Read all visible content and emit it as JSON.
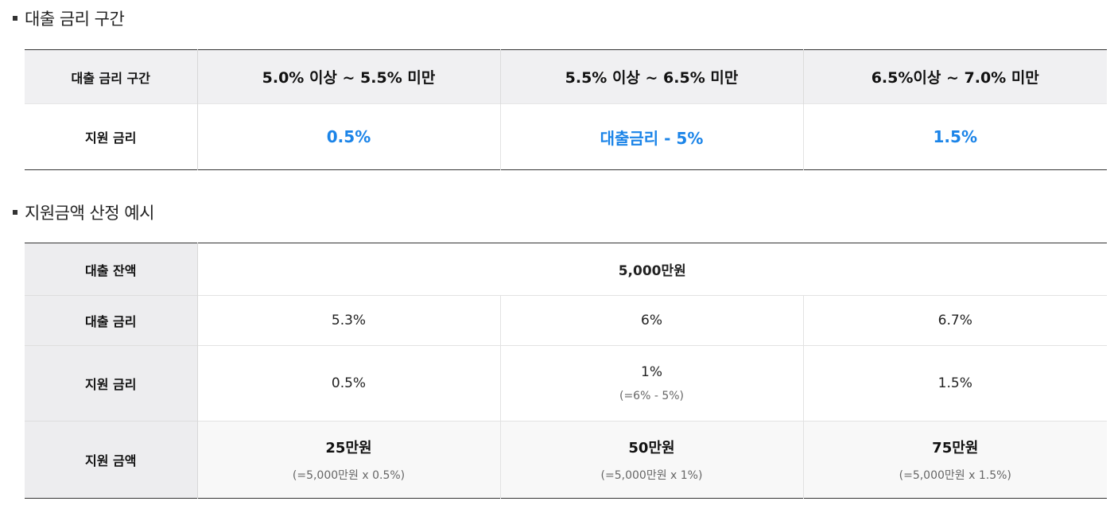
{
  "section1": {
    "title": "대출 금리 구간",
    "header_label": "대출 금리 구간",
    "ranges": [
      "5.0% 이상 ~ 5.5% 미만",
      "5.5% 이상 ~ 6.5% 미만",
      "6.5%이상 ~ 7.0% 미만"
    ],
    "support_label": "지원 금리",
    "support_rates": [
      "0.5%",
      "대출금리 - 5%",
      "1.5%"
    ],
    "accent_color": "#1b84e8"
  },
  "section2": {
    "title": "지원금액 산정 예시",
    "balance_label": "대출 잔액",
    "balance_value": "5,000만원",
    "loan_rate_label": "대출 금리",
    "loan_rates": [
      "5.3%",
      "6%",
      "6.7%"
    ],
    "support_rate_label": "지원 금리",
    "support_rates": [
      {
        "value": "0.5%",
        "note": ""
      },
      {
        "value": "1%",
        "note": "(=6% - 5%)"
      },
      {
        "value": "1.5%",
        "note": ""
      }
    ],
    "amount_label": "지원 금액",
    "amounts": [
      {
        "value": "25만원",
        "note": "(=5,000만원 x 0.5%)"
      },
      {
        "value": "50만원",
        "note": "(=5,000만원 x 1%)"
      },
      {
        "value": "75만원",
        "note": "(=5,000만원 x 1.5%)"
      }
    ]
  }
}
